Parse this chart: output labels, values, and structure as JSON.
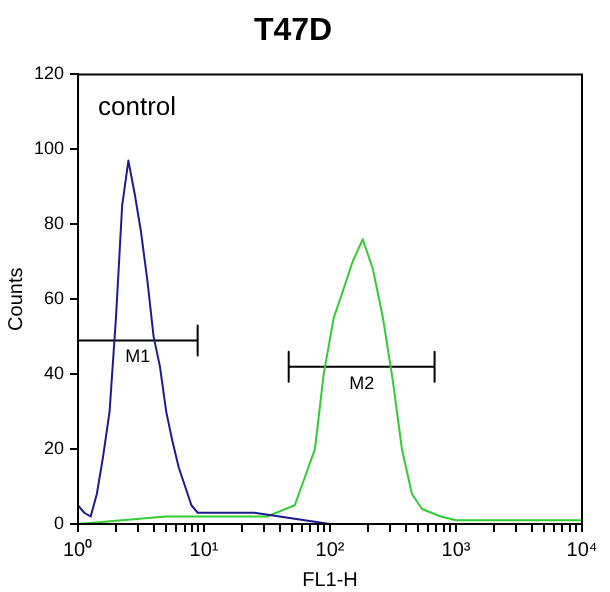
{
  "chart_data": {
    "type": "line",
    "title": "T47D",
    "xlabel": "FL1-H",
    "ylabel": "Counts",
    "log": "x",
    "legend": false,
    "grid": false,
    "marker": "none",
    "xlim": [
      1,
      10000
    ],
    "ylim": [
      0,
      120
    ],
    "xticks": [
      {
        "value": 1,
        "label": "10⁰"
      },
      {
        "value": 2,
        "label": null
      },
      {
        "value": 3,
        "label": null
      },
      {
        "value": 4,
        "label": null
      },
      {
        "value": 5,
        "label": null
      },
      {
        "value": 6,
        "label": null
      },
      {
        "value": 7,
        "label": null
      },
      {
        "value": 8,
        "label": null
      },
      {
        "value": 9,
        "label": null
      },
      {
        "value": 10,
        "label": "10¹"
      },
      {
        "value": 20,
        "label": null
      },
      {
        "value": 30,
        "label": null
      },
      {
        "value": 40,
        "label": null
      },
      {
        "value": 50,
        "label": null
      },
      {
        "value": 60,
        "label": null
      },
      {
        "value": 70,
        "label": null
      },
      {
        "value": 80,
        "label": null
      },
      {
        "value": 90,
        "label": null
      },
      {
        "value": 100,
        "label": "10²"
      },
      {
        "value": 200,
        "label": null
      },
      {
        "value": 300,
        "label": null
      },
      {
        "value": 400,
        "label": null
      },
      {
        "value": 500,
        "label": null
      },
      {
        "value": 600,
        "label": null
      },
      {
        "value": 700,
        "label": null
      },
      {
        "value": 800,
        "label": null
      },
      {
        "value": 900,
        "label": null
      },
      {
        "value": 1000,
        "label": "10³"
      },
      {
        "value": 2000,
        "label": null
      },
      {
        "value": 3000,
        "label": null
      },
      {
        "value": 4000,
        "label": null
      },
      {
        "value": 5000,
        "label": null
      },
      {
        "value": 6000,
        "label": null
      },
      {
        "value": 7000,
        "label": null
      },
      {
        "value": 8000,
        "label": null
      },
      {
        "value": 9000,
        "label": null
      },
      {
        "value": 10000,
        "label": "10⁴"
      }
    ],
    "yticks": [
      0,
      20,
      40,
      60,
      80,
      100,
      120
    ],
    "annotations": [
      "control"
    ],
    "series": [
      {
        "color": "#1c1c90",
        "x": [
          1,
          1.12,
          1.26,
          1.41,
          1.58,
          1.78,
          2,
          2.24,
          2.51,
          2.82,
          3.16,
          3.55,
          3.98,
          4.47,
          5.01,
          5.62,
          6.31,
          7.08,
          7.94,
          8.91,
          10,
          15.8,
          25.1,
          39.8,
          63.1,
          100
        ],
        "values": [
          5,
          3,
          2,
          8,
          18,
          30,
          55,
          85,
          97,
          88,
          78,
          65,
          50,
          42,
          30,
          22,
          15,
          10,
          5,
          3,
          3,
          3,
          3,
          2,
          1,
          0
        ]
      },
      {
        "color": "#33cc33",
        "x": [
          1,
          5,
          10,
          20,
          31.6,
          52.5,
          75.9,
          89.1,
          107,
          126,
          151,
          182,
          219,
          263,
          316,
          372,
          447,
          537,
          759,
          1000,
          10000
        ],
        "values": [
          0,
          2,
          2,
          2,
          2,
          5,
          20,
          40,
          55,
          62,
          70,
          76,
          68,
          55,
          38,
          20,
          8,
          4,
          2,
          1,
          1
        ]
      },
      {
        "name": "M1",
        "color": "#000000",
        "x": [
          1,
          1,
          1,
          8.9,
          8.9,
          8.9
        ],
        "values": [
          53,
          45,
          49,
          49,
          53,
          45
        ]
      },
      {
        "name": "M2",
        "color": "#000000",
        "x": [
          47,
          47,
          47,
          676,
          676,
          676
        ],
        "values": [
          46,
          38,
          42,
          42,
          46,
          38
        ]
      }
    ]
  }
}
